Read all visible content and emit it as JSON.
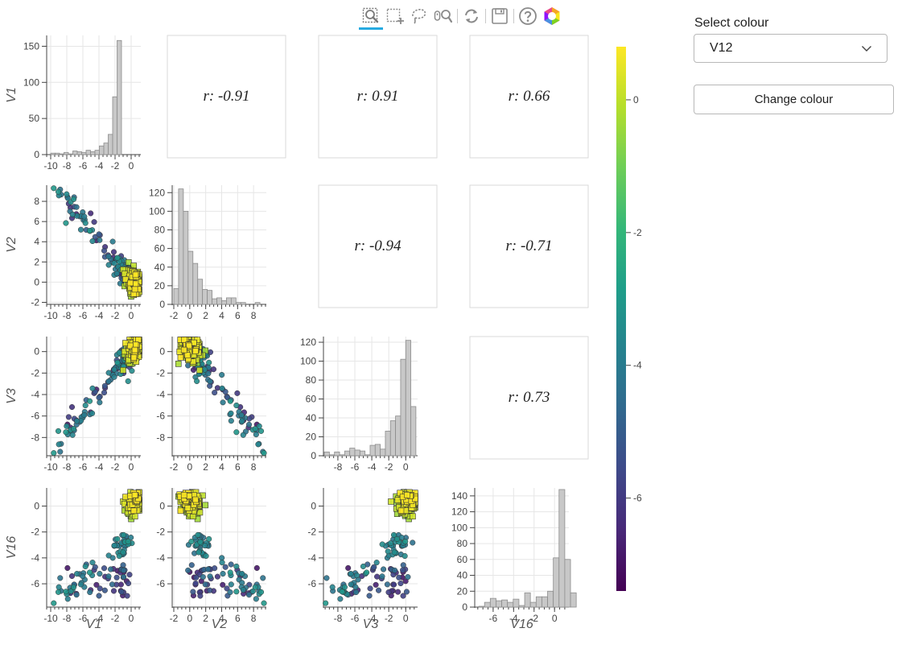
{
  "sidebar": {
    "select_label": "Select colour",
    "select_value": "V12",
    "button_label": "Change colour"
  },
  "toolbar": {
    "tools": [
      "box-zoom",
      "box-select",
      "lasso-select",
      "wheel-zoom",
      "reset",
      "save",
      "help",
      "bokeh-logo"
    ],
    "active": "box-zoom"
  },
  "colors": {
    "histogram_fill": "#c8c8c8",
    "histogram_stroke": "#8c8c8c",
    "grid": "#e6e6e6",
    "panel_border": "#dadada",
    "colormap": [
      "#440154",
      "#482878",
      "#3e4989",
      "#31688e",
      "#26828e",
      "#1f9e89",
      "#35b779",
      "#6ece58",
      "#b5de2b",
      "#fde725"
    ]
  },
  "chart_data": {
    "type": "scatter",
    "subtype": "pair-plot matrix",
    "variables": [
      "V1",
      "V2",
      "V3",
      "V16"
    ],
    "color_by": "V12",
    "axis_ranges": {
      "V1": [
        -10.5,
        1.2
      ],
      "V2": [
        -2.2,
        9.6
      ],
      "V3": [
        -9.7,
        1.4
      ],
      "V16": [
        -7.8,
        1.4
      ]
    },
    "ticks": {
      "V1": [
        -10,
        -8,
        -6,
        -4,
        -2,
        0
      ],
      "V2": [
        -2,
        0,
        2,
        4,
        6,
        8
      ],
      "V3": [
        -8,
        -6,
        -4,
        -2,
        0
      ],
      "V16": [
        -6,
        -4,
        -2,
        0
      ]
    },
    "x_tick_labels_by_col": [
      [
        "-10",
        "-8",
        "-6",
        "-4",
        "-2",
        "0"
      ],
      [
        "-2",
        "0",
        "2",
        "4",
        "6",
        "8"
      ],
      [
        "-8",
        "-6",
        "-4",
        "-2",
        "0"
      ],
      [
        "-6",
        "-4",
        "-2",
        "0"
      ]
    ],
    "histograms": [
      {
        "var": "V1",
        "bin_start": -10,
        "bin_width": 0.55,
        "ylim": [
          0,
          165
        ],
        "yticks": [
          "0",
          "50",
          "100",
          "150"
        ],
        "counts": [
          2,
          2,
          1,
          3,
          1,
          5,
          4,
          3,
          6,
          4,
          6,
          12,
          16,
          28,
          80,
          158
        ]
      },
      {
        "var": "V2",
        "bin_start": -2,
        "bin_width": 0.6,
        "ylim": [
          0,
          128
        ],
        "yticks": [
          "0",
          "20",
          "40",
          "60",
          "80",
          "100",
          "120"
        ],
        "counts": [
          17,
          124,
          100,
          57,
          44,
          27,
          16,
          15,
          6,
          7,
          4,
          7,
          7,
          2,
          2,
          0,
          0,
          2
        ]
      },
      {
        "var": "V3",
        "bin_start": -9.6,
        "bin_width": 0.6,
        "ylim": [
          0,
          126
        ],
        "yticks": [
          "0",
          "20",
          "40",
          "60",
          "80",
          "100",
          "120"
        ],
        "counts": [
          4,
          1,
          4,
          1,
          5,
          8,
          6,
          5,
          1,
          11,
          12,
          7,
          26,
          37,
          42,
          102,
          122,
          52
        ]
      },
      {
        "var": "V16",
        "bin_start": -7.4,
        "bin_width": 0.56,
        "ylim": [
          0,
          150
        ],
        "yticks": [
          "0",
          "20",
          "40",
          "60",
          "80",
          "100",
          "120",
          "140"
        ],
        "counts": [
          1,
          6,
          11,
          8,
          9,
          6,
          10,
          2,
          18,
          6,
          13,
          13,
          20,
          62,
          148,
          60,
          18
        ]
      }
    ],
    "correlations": [
      {
        "row": 0,
        "col": 1,
        "label": "r: -0.91"
      },
      {
        "row": 0,
        "col": 2,
        "label": "r: 0.91"
      },
      {
        "row": 0,
        "col": 3,
        "label": "r: 0.66"
      },
      {
        "row": 1,
        "col": 2,
        "label": "r: -0.94"
      },
      {
        "row": 1,
        "col": 3,
        "label": "r: -0.71"
      },
      {
        "row": 2,
        "col": 3,
        "label": "r: 0.73"
      }
    ],
    "colorbar": {
      "range": [
        -7.4,
        0.8
      ],
      "ticks": [
        0,
        -2,
        -4,
        -6
      ],
      "tick_labels": [
        "0",
        "-2",
        "-4",
        "-6"
      ]
    },
    "legend": "none",
    "grid": true
  }
}
